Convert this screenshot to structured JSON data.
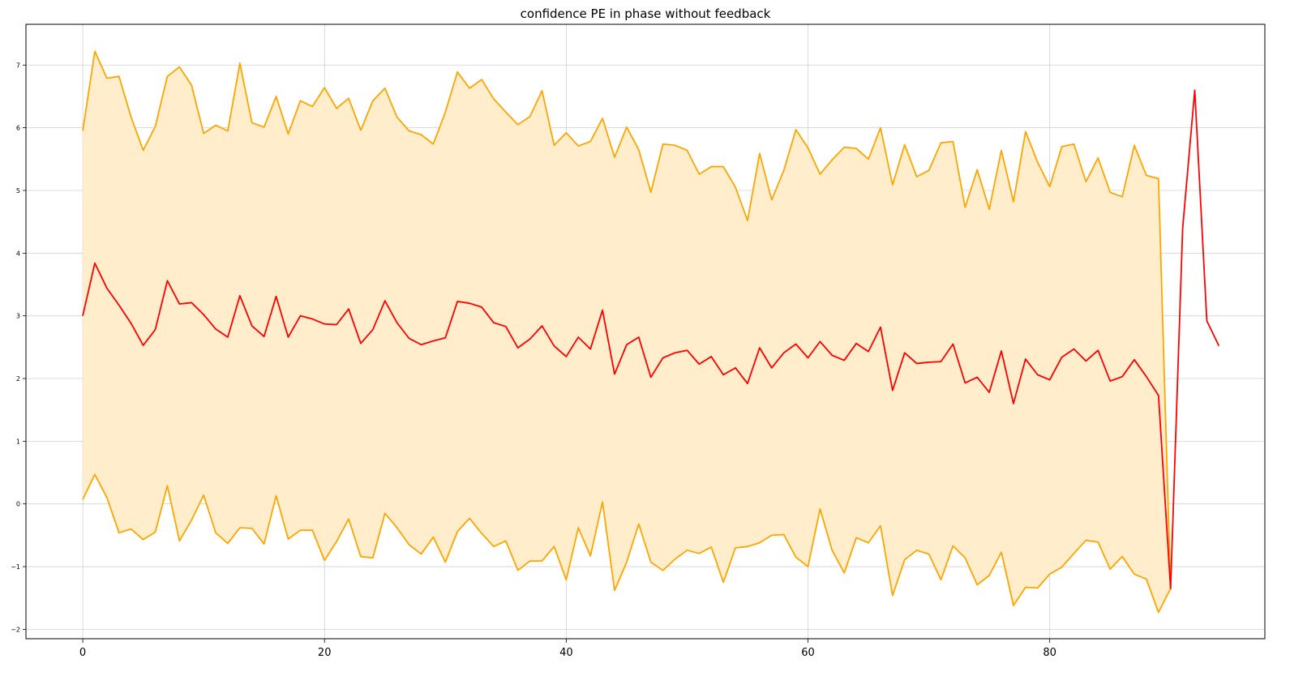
{
  "chart_data": {
    "type": "line",
    "title": "confidence PE in phase without feedback",
    "xlabel": "",
    "ylabel": "",
    "xlim": [
      -4.7,
      97.8
    ],
    "ylim": [
      -2.15,
      7.65
    ],
    "x_ticks": [
      0,
      20,
      40,
      60,
      80
    ],
    "y_ticks": [
      -2,
      -1,
      0,
      1,
      2,
      3,
      4,
      5,
      6,
      7
    ],
    "grid": true,
    "colors": {
      "mean_line": "#ff0000",
      "band_line": "#ffa500",
      "band_fill": "#ffedcc"
    },
    "series": [
      {
        "role": "mean",
        "x": [
          0,
          1,
          2,
          3,
          4,
          5,
          6,
          7,
          8,
          9,
          10,
          11,
          12,
          13,
          14,
          15,
          16,
          17,
          18,
          19,
          20,
          21,
          22,
          23,
          24,
          25,
          26,
          27,
          28,
          29,
          30,
          31,
          32,
          33,
          34,
          35,
          36,
          37,
          38,
          39,
          40,
          41,
          42,
          43,
          44,
          45,
          46,
          47,
          48,
          49,
          50,
          51,
          52,
          53,
          54,
          55,
          56,
          57,
          58,
          59,
          60,
          61,
          62,
          63,
          64,
          65,
          66,
          67,
          68,
          69,
          70,
          71,
          72,
          73,
          74,
          75,
          76,
          77,
          78,
          79,
          80,
          81,
          82,
          83,
          84,
          85,
          86,
          87,
          88,
          89,
          90,
          91,
          92,
          93,
          94
        ],
        "values": [
          3.0,
          3.84,
          3.44,
          3.17,
          2.88,
          2.53,
          2.78,
          3.56,
          3.19,
          3.21,
          3.02,
          2.79,
          2.66,
          3.32,
          2.84,
          2.67,
          3.31,
          2.66,
          3.0,
          2.95,
          2.87,
          2.86,
          3.11,
          2.56,
          2.78,
          3.24,
          2.89,
          2.64,
          2.54,
          2.6,
          2.65,
          3.23,
          3.2,
          3.14,
          2.89,
          2.83,
          2.49,
          2.63,
          2.84,
          2.52,
          2.35,
          2.66,
          2.47,
          3.09,
          2.07,
          2.54,
          2.66,
          2.02,
          2.33,
          2.41,
          2.45,
          2.23,
          2.35,
          2.06,
          2.17,
          1.92,
          2.49,
          2.17,
          2.41,
          2.55,
          2.33,
          2.59,
          2.37,
          2.29,
          2.56,
          2.43,
          2.82,
          1.81,
          2.41,
          2.24,
          2.26,
          2.27,
          2.55,
          1.93,
          2.02,
          1.78,
          2.44,
          1.6,
          2.31,
          2.06,
          1.98,
          2.34,
          2.47,
          2.28,
          2.45,
          1.96,
          2.03,
          2.3,
          2.03,
          1.73,
          -1.35,
          4.4,
          6.6,
          2.92,
          2.52
        ]
      },
      {
        "role": "upper",
        "x": [
          0,
          1,
          2,
          3,
          4,
          5,
          6,
          7,
          8,
          9,
          10,
          11,
          12,
          13,
          14,
          15,
          16,
          17,
          18,
          19,
          20,
          21,
          22,
          23,
          24,
          25,
          26,
          27,
          28,
          29,
          30,
          31,
          32,
          33,
          34,
          35,
          36,
          37,
          38,
          39,
          40,
          41,
          42,
          43,
          44,
          45,
          46,
          47,
          48,
          49,
          50,
          51,
          52,
          53,
          54,
          55,
          56,
          57,
          58,
          59,
          60,
          61,
          62,
          63,
          64,
          65,
          66,
          67,
          68,
          69,
          70,
          71,
          72,
          73,
          74,
          75,
          76,
          77,
          78,
          79,
          80,
          81,
          82,
          83,
          84,
          85,
          86,
          87,
          88,
          89,
          90
        ],
        "values": [
          5.95,
          7.22,
          6.79,
          6.82,
          6.17,
          5.64,
          6.02,
          6.82,
          6.97,
          6.68,
          5.91,
          6.04,
          5.95,
          7.03,
          6.08,
          6.01,
          6.5,
          5.9,
          6.43,
          6.34,
          6.64,
          6.31,
          6.47,
          5.96,
          6.43,
          6.63,
          6.17,
          5.95,
          5.89,
          5.74,
          6.25,
          6.89,
          6.63,
          6.77,
          6.46,
          6.25,
          6.05,
          6.18,
          6.59,
          5.72,
          5.92,
          5.71,
          5.78,
          6.15,
          5.53,
          6.01,
          5.65,
          4.97,
          5.74,
          5.72,
          5.64,
          5.26,
          5.38,
          5.38,
          5.05,
          4.52,
          5.59,
          4.85,
          5.32,
          5.97,
          5.68,
          5.26,
          5.49,
          5.69,
          5.67,
          5.5,
          6.0,
          5.09,
          5.73,
          5.22,
          5.32,
          5.76,
          5.78,
          4.73,
          5.33,
          4.7,
          5.64,
          4.82,
          5.94,
          5.45,
          5.06,
          5.7,
          5.74,
          5.14,
          5.52,
          4.97,
          4.9,
          5.72,
          5.24,
          5.19,
          -1.35
        ]
      },
      {
        "role": "lower",
        "x": [
          0,
          1,
          2,
          3,
          4,
          5,
          6,
          7,
          8,
          9,
          10,
          11,
          12,
          13,
          14,
          15,
          16,
          17,
          18,
          19,
          20,
          21,
          22,
          23,
          24,
          25,
          26,
          27,
          28,
          29,
          30,
          31,
          32,
          33,
          34,
          35,
          36,
          37,
          38,
          39,
          40,
          41,
          42,
          43,
          44,
          45,
          46,
          47,
          48,
          49,
          50,
          51,
          52,
          53,
          54,
          55,
          56,
          57,
          58,
          59,
          60,
          61,
          62,
          63,
          64,
          65,
          66,
          67,
          68,
          69,
          70,
          71,
          72,
          73,
          74,
          75,
          76,
          77,
          78,
          79,
          80,
          81,
          82,
          83,
          84,
          85,
          86,
          87,
          88,
          89,
          90
        ],
        "values": [
          0.07,
          0.47,
          0.1,
          -0.46,
          -0.4,
          -0.57,
          -0.45,
          0.29,
          -0.59,
          -0.26,
          0.14,
          -0.46,
          -0.63,
          -0.38,
          -0.39,
          -0.64,
          0.13,
          -0.56,
          -0.42,
          -0.42,
          -0.9,
          -0.6,
          -0.24,
          -0.84,
          -0.86,
          -0.15,
          -0.38,
          -0.65,
          -0.8,
          -0.53,
          -0.93,
          -0.44,
          -0.23,
          -0.47,
          -0.68,
          -0.59,
          -1.06,
          -0.91,
          -0.91,
          -0.68,
          -1.21,
          -0.38,
          -0.83,
          0.03,
          -1.38,
          -0.93,
          -0.32,
          -0.93,
          -1.06,
          -0.88,
          -0.74,
          -0.79,
          -0.69,
          -1.25,
          -0.7,
          -0.68,
          -0.62,
          -0.5,
          -0.49,
          -0.85,
          -1.0,
          -0.08,
          -0.74,
          -1.1,
          -0.54,
          -0.62,
          -0.35,
          -1.46,
          -0.89,
          -0.74,
          -0.8,
          -1.21,
          -0.67,
          -0.86,
          -1.29,
          -1.14,
          -0.77,
          -1.62,
          -1.33,
          -1.34,
          -1.12,
          -1.01,
          -0.79,
          -0.58,
          -0.61,
          -1.04,
          -0.84,
          -1.12,
          -1.2,
          -1.73,
          -1.35
        ]
      }
    ]
  }
}
